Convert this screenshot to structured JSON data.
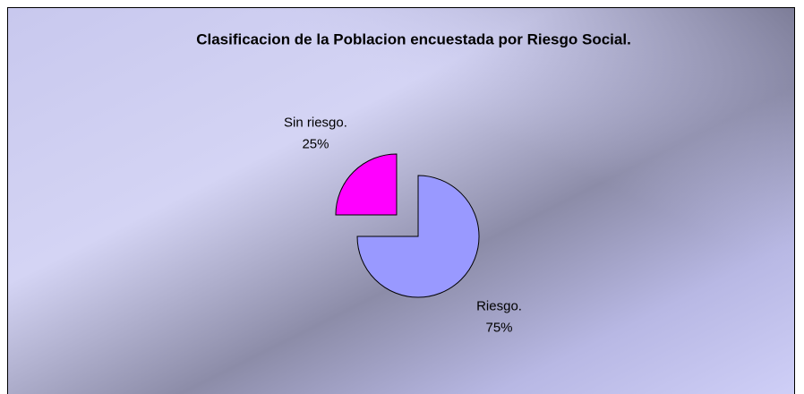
{
  "chart_data": {
    "type": "pie",
    "title": "Clasificacion de la Poblacion encuestada por Riesgo Social.",
    "categories": [
      "Riesgo.",
      "Sin riesgo."
    ],
    "values": [
      75,
      25
    ],
    "value_labels": [
      "75%",
      "25%"
    ],
    "colors": [
      "#9999ff",
      "#ff00ff"
    ]
  }
}
